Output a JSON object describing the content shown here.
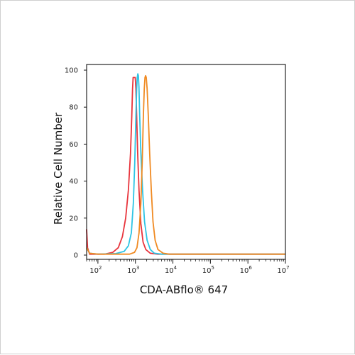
{
  "chart_data": {
    "type": "line",
    "title": "",
    "xlabel": "CDA-ABflo® 647",
    "ylabel": "Relative Cell Number",
    "x_scale": "log",
    "xlim": [
      50,
      10000000
    ],
    "ylim": [
      0,
      100
    ],
    "y_ticks": [
      0,
      20,
      40,
      60,
      80,
      100
    ],
    "x_ticks": [
      {
        "value": 100,
        "base": "10",
        "exp": "2"
      },
      {
        "value": 1000,
        "base": "10",
        "exp": "3"
      },
      {
        "value": 10000,
        "base": "10",
        "exp": "4"
      },
      {
        "value": 100000,
        "base": "10",
        "exp": "5"
      },
      {
        "value": 1000000,
        "base": "10",
        "exp": "6"
      },
      {
        "value": 10000000,
        "base": "10",
        "exp": "7"
      }
    ],
    "grid": false,
    "series": [
      {
        "color": "#e8343c",
        "points": [
          [
            50,
            14
          ],
          [
            53,
            4
          ],
          [
            60,
            0.5
          ],
          [
            150,
            0.5
          ],
          [
            250,
            1.5
          ],
          [
            350,
            4
          ],
          [
            450,
            10
          ],
          [
            550,
            20
          ],
          [
            650,
            35
          ],
          [
            740,
            55
          ],
          [
            800,
            75
          ],
          [
            840,
            90
          ],
          [
            870,
            96
          ],
          [
            920,
            96
          ],
          [
            990,
            96
          ],
          [
            1030,
            90
          ],
          [
            1080,
            75
          ],
          [
            1150,
            55
          ],
          [
            1250,
            35
          ],
          [
            1400,
            17
          ],
          [
            1600,
            7
          ],
          [
            1900,
            3
          ],
          [
            2500,
            1
          ],
          [
            4000,
            0.5
          ],
          [
            10000000,
            0.5
          ]
        ]
      },
      {
        "color": "#2ec4e4",
        "points": [
          [
            50,
            4
          ],
          [
            60,
            1
          ],
          [
            100,
            0.5
          ],
          [
            300,
            0.8
          ],
          [
            500,
            2
          ],
          [
            650,
            5
          ],
          [
            780,
            12
          ],
          [
            880,
            28
          ],
          [
            960,
            50
          ],
          [
            1030,
            75
          ],
          [
            1080,
            90
          ],
          [
            1120,
            96
          ],
          [
            1160,
            98
          ],
          [
            1200,
            97
          ],
          [
            1240,
            91
          ],
          [
            1300,
            76
          ],
          [
            1400,
            55
          ],
          [
            1550,
            35
          ],
          [
            1750,
            18
          ],
          [
            2050,
            8
          ],
          [
            2500,
            3
          ],
          [
            3200,
            1
          ],
          [
            5000,
            0.5
          ],
          [
            10000000,
            0.5
          ]
        ]
      },
      {
        "color": "#f08a22",
        "points": [
          [
            50,
            4
          ],
          [
            60,
            1
          ],
          [
            100,
            0.5
          ],
          [
            700,
            0.5
          ],
          [
            950,
            1.5
          ],
          [
            1100,
            4
          ],
          [
            1250,
            12
          ],
          [
            1400,
            28
          ],
          [
            1520,
            50
          ],
          [
            1630,
            75
          ],
          [
            1720,
            90
          ],
          [
            1800,
            96
          ],
          [
            1870,
            97
          ],
          [
            1950,
            96
          ],
          [
            2050,
            90
          ],
          [
            2200,
            76
          ],
          [
            2400,
            55
          ],
          [
            2650,
            35
          ],
          [
            2950,
            18
          ],
          [
            3350,
            8
          ],
          [
            4000,
            3
          ],
          [
            5500,
            1
          ],
          [
            8000,
            0.5
          ],
          [
            10000000,
            0.5
          ]
        ]
      }
    ]
  }
}
